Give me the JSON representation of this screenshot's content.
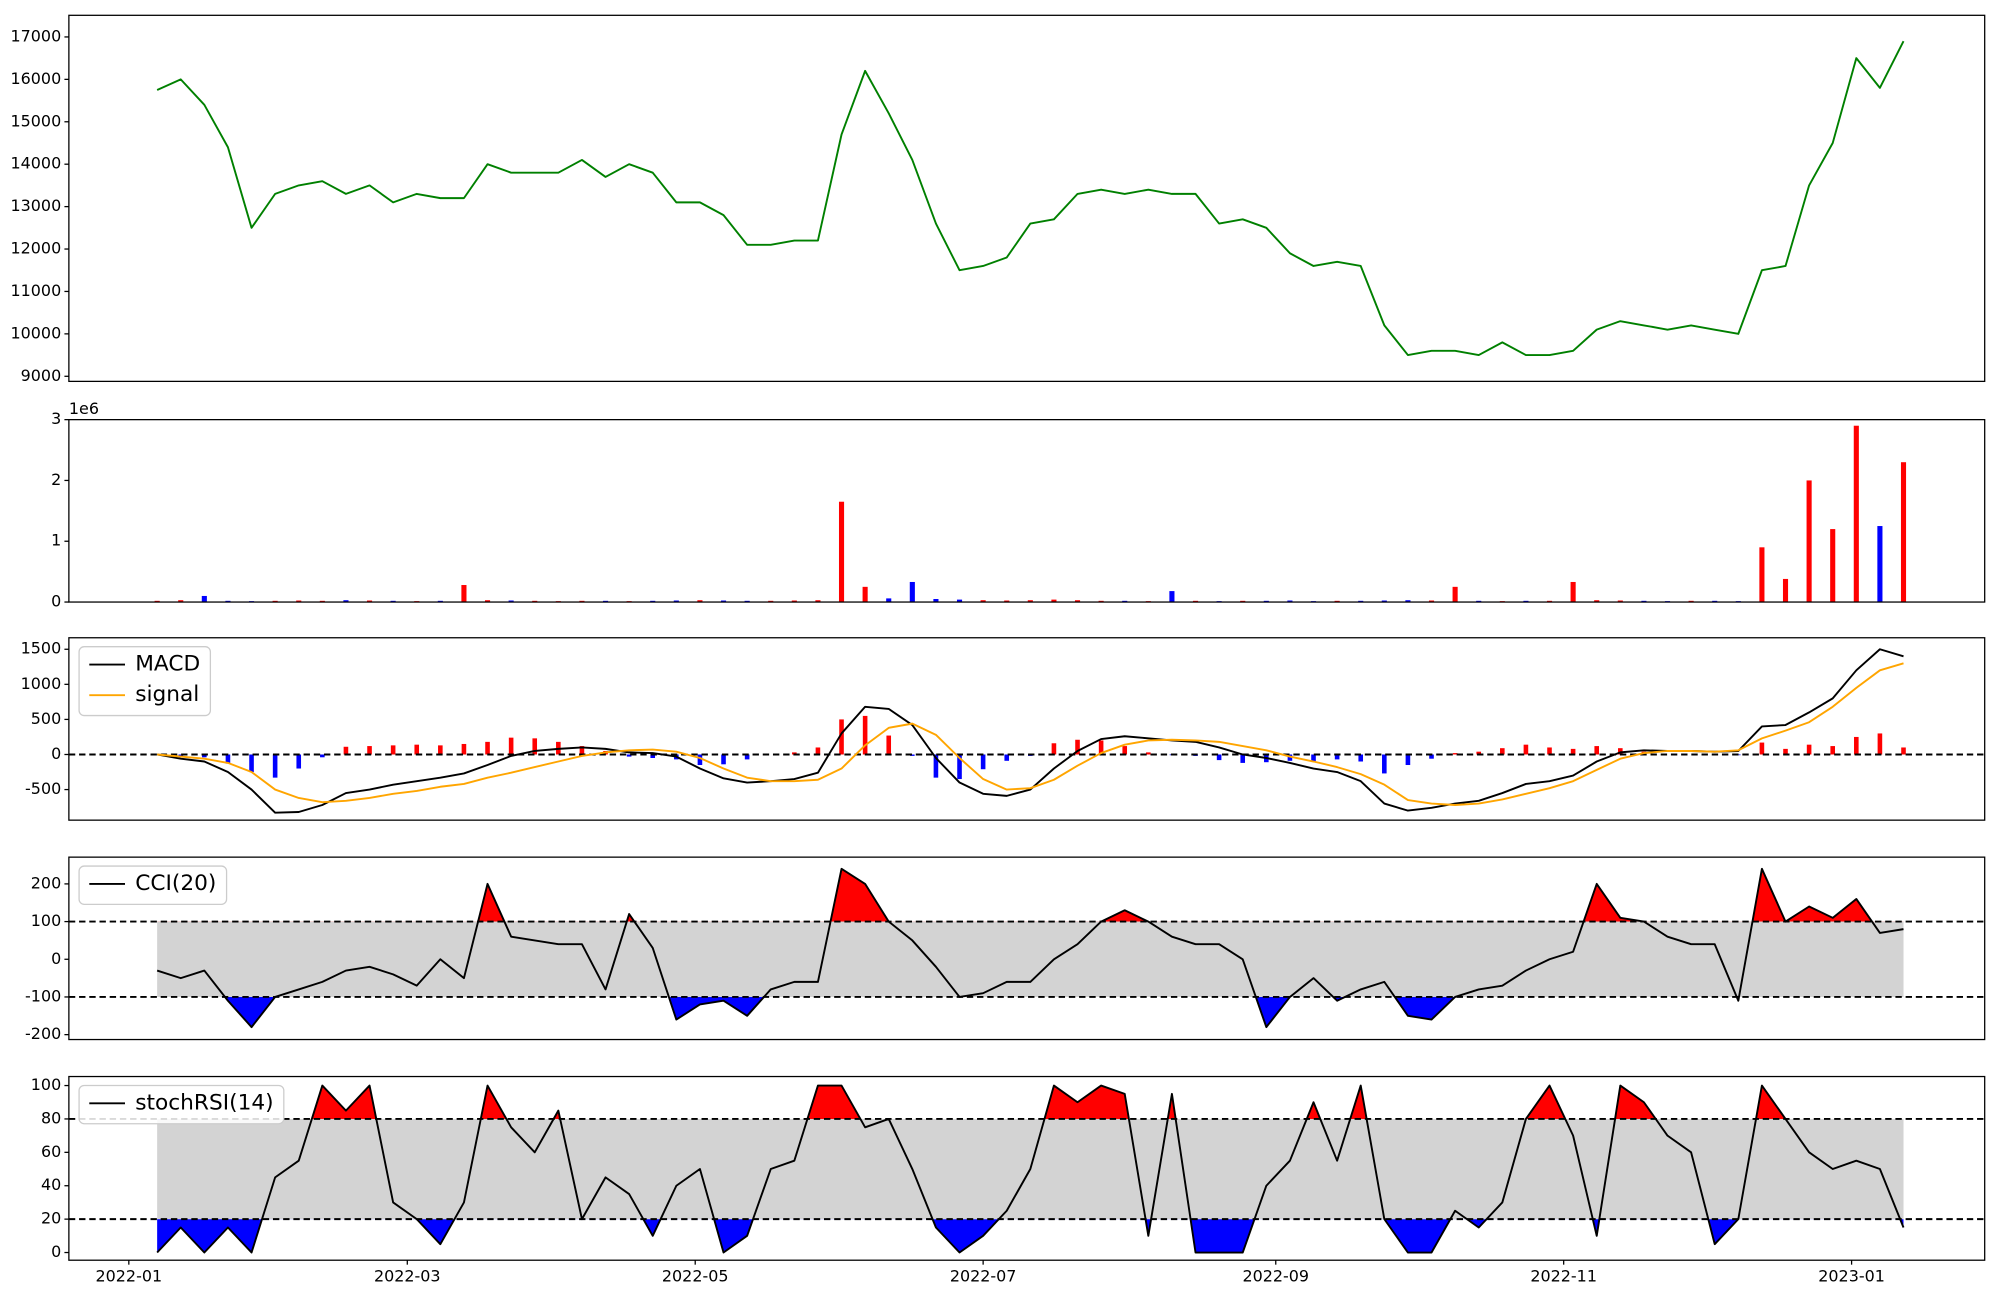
{
  "chart_data": [
    {
      "type": "line",
      "x": [
        6,
        11,
        16,
        21,
        26,
        31,
        36,
        41,
        46,
        51,
        56,
        61,
        66,
        71,
        76,
        81,
        86,
        91,
        96,
        101,
        106,
        111,
        116,
        121,
        126,
        131,
        136,
        141,
        146,
        151,
        156,
        161,
        166,
        171,
        176,
        181,
        186,
        191,
        196,
        201,
        206,
        211,
        216,
        221,
        226,
        231,
        236,
        241,
        246,
        251,
        256,
        261,
        266,
        271,
        276,
        281,
        286,
        291,
        296,
        301,
        306,
        311,
        316,
        321,
        326,
        331,
        336,
        341,
        346,
        351,
        356,
        361,
        366,
        371,
        376
      ],
      "series": [
        {
          "color": "green",
          "values": [
            15750,
            16000,
            15400,
            14400,
            12500,
            13300,
            13500,
            13600,
            13300,
            13500,
            13100,
            13300,
            13200,
            13200,
            14000,
            13800,
            13800,
            13800,
            14100,
            13700,
            14000,
            13800,
            13100,
            13100,
            12800,
            12100,
            12100,
            12200,
            12200,
            14700,
            16200,
            15200,
            14100,
            12600,
            11500,
            11600,
            11800,
            12600,
            12700,
            13300,
            13400,
            13300,
            13400,
            13300,
            13300,
            12600,
            12700,
            12500,
            11900,
            11600,
            11700,
            11600,
            10200,
            9500,
            9600,
            9600,
            9500,
            9800,
            9500,
            9500,
            9600,
            10100,
            10300,
            10200,
            10100,
            10200,
            10100,
            10000,
            11500,
            11600,
            13500,
            14500,
            16500,
            15800,
            16900
          ]
        }
      ],
      "xlim": [
        -12.7,
        393.2
      ],
      "ylim": [
        8880,
        17510
      ],
      "yticks": [
        9000,
        10000,
        11000,
        12000,
        13000,
        14000,
        15000,
        16000,
        17000
      ]
    },
    {
      "type": "bar",
      "x": [
        6,
        11,
        16,
        21,
        26,
        31,
        36,
        41,
        46,
        51,
        56,
        61,
        66,
        71,
        76,
        81,
        86,
        91,
        96,
        101,
        106,
        111,
        116,
        121,
        126,
        131,
        136,
        141,
        146,
        151,
        156,
        161,
        166,
        171,
        176,
        181,
        186,
        191,
        196,
        201,
        206,
        211,
        216,
        221,
        226,
        231,
        236,
        241,
        246,
        251,
        256,
        261,
        266,
        271,
        276,
        281,
        286,
        291,
        296,
        301,
        306,
        311,
        316,
        321,
        326,
        331,
        336,
        341,
        346,
        351,
        356,
        361,
        366,
        371,
        376
      ],
      "values": [
        20000,
        30000,
        100000,
        20000,
        15000,
        20000,
        25000,
        20000,
        30000,
        25000,
        20000,
        15000,
        20000,
        280000,
        30000,
        25000,
        20000,
        15000,
        20000,
        20000,
        15000,
        20000,
        25000,
        30000,
        25000,
        20000,
        20000,
        25000,
        30000,
        1650000,
        250000,
        60000,
        330000,
        50000,
        40000,
        30000,
        25000,
        30000,
        40000,
        30000,
        20000,
        20000,
        15000,
        180000,
        20000,
        15000,
        20000,
        20000,
        25000,
        15000,
        20000,
        20000,
        25000,
        30000,
        25000,
        250000,
        20000,
        15000,
        20000,
        20000,
        330000,
        30000,
        25000,
        20000,
        15000,
        20000,
        20000,
        15000,
        900000,
        380000,
        2000000,
        1200000,
        2900000,
        1250000,
        2300000
      ],
      "up_color": "red",
      "down_color": "blue",
      "xlim": [
        -12.7,
        393.2
      ],
      "ylim": [
        0,
        3000000
      ],
      "yticks": [
        0,
        {
          "value": 1000000,
          "label": "1"
        },
        {
          "value": 2000000,
          "label": "2"
        },
        {
          "value": 3000000,
          "label": "3"
        }
      ],
      "offset_label": "1e6"
    },
    {
      "type": "macd",
      "x": [
        6,
        11,
        16,
        21,
        26,
        31,
        36,
        41,
        46,
        51,
        56,
        61,
        66,
        71,
        76,
        81,
        86,
        91,
        96,
        101,
        106,
        111,
        116,
        121,
        126,
        131,
        136,
        141,
        146,
        151,
        156,
        161,
        166,
        171,
        176,
        181,
        186,
        191,
        196,
        201,
        206,
        211,
        216,
        221,
        226,
        231,
        236,
        241,
        246,
        251,
        256,
        261,
        266,
        271,
        276,
        281,
        286,
        291,
        296,
        301,
        306,
        311,
        316,
        321,
        326,
        331,
        336,
        341,
        346,
        351,
        356,
        361,
        366,
        371,
        376
      ],
      "series": [
        {
          "name": "MACD",
          "color": "black",
          "values": [
            0,
            -60,
            -100,
            -250,
            -500,
            -830,
            -820,
            -720,
            -550,
            -500,
            -430,
            -380,
            -330,
            -270,
            -150,
            -20,
            50,
            80,
            100,
            80,
            30,
            20,
            -30,
            -200,
            -340,
            -400,
            -380,
            -350,
            -260,
            300,
            680,
            650,
            420,
            -50,
            -400,
            -560,
            -590,
            -500,
            -200,
            50,
            220,
            260,
            230,
            200,
            180,
            100,
            0,
            -50,
            -120,
            -200,
            -250,
            -380,
            -700,
            -800,
            -760,
            -700,
            -660,
            -550,
            -420,
            -380,
            -300,
            -100,
            30,
            60,
            50,
            50,
            40,
            50,
            400,
            420,
            600,
            800,
            1200,
            1500,
            1400
          ]
        },
        {
          "name": "signal",
          "color": "orange",
          "values": [
            0,
            -30,
            -60,
            -120,
            -250,
            -500,
            -620,
            -680,
            -660,
            -620,
            -560,
            -520,
            -460,
            -420,
            -330,
            -260,
            -180,
            -100,
            -20,
            30,
            60,
            70,
            40,
            -50,
            -200,
            -330,
            -380,
            -380,
            -360,
            -200,
            130,
            380,
            440,
            280,
            -50,
            -350,
            -500,
            -480,
            -360,
            -160,
            20,
            140,
            200,
            210,
            200,
            180,
            120,
            60,
            -30,
            -100,
            -180,
            -280,
            -430,
            -650,
            -700,
            -720,
            -700,
            -640,
            -560,
            -480,
            -380,
            -220,
            -60,
            20,
            50,
            50,
            40,
            60,
            230,
            340,
            460,
            680,
            950,
            1200,
            1300
          ]
        }
      ],
      "histogram": {
        "values": [
          0,
          -30,
          -40,
          -130,
          -250,
          -330,
          -200,
          -40,
          110,
          120,
          130,
          140,
          130,
          150,
          180,
          240,
          230,
          180,
          120,
          50,
          -30,
          -50,
          -70,
          -150,
          -140,
          -70,
          0,
          30,
          100,
          500,
          550,
          270,
          -20,
          -330,
          -350,
          -210,
          -90,
          -20,
          160,
          210,
          200,
          120,
          30,
          -10,
          -20,
          -80,
          -120,
          -110,
          -90,
          -100,
          -70,
          -100,
          -270,
          -150,
          -60,
          20,
          40,
          90,
          140,
          100,
          80,
          120,
          90,
          40,
          0,
          0,
          0,
          -10,
          170,
          80,
          140,
          120,
          250,
          300,
          100
        ],
        "up_color": "red",
        "down_color": "blue"
      },
      "hline": 0,
      "legend": "upper left",
      "xlim": [
        -12.7,
        393.2
      ],
      "ylim": [
        -936,
        1664
      ],
      "yticks": [
        -500,
        0,
        500,
        1000,
        1500
      ]
    },
    {
      "type": "band_line",
      "x": [
        6,
        11,
        16,
        21,
        26,
        31,
        36,
        41,
        46,
        51,
        56,
        61,
        66,
        71,
        76,
        81,
        86,
        91,
        96,
        101,
        106,
        111,
        116,
        121,
        126,
        131,
        136,
        141,
        146,
        151,
        156,
        161,
        166,
        171,
        176,
        181,
        186,
        191,
        196,
        201,
        206,
        211,
        216,
        221,
        226,
        231,
        236,
        241,
        246,
        251,
        256,
        261,
        266,
        271,
        276,
        281,
        286,
        291,
        296,
        301,
        306,
        311,
        316,
        321,
        326,
        331,
        336,
        341,
        346,
        351,
        356,
        361,
        366,
        371,
        376
      ],
      "series": [
        {
          "name": "CCI(20)",
          "color": "black",
          "values": [
            -30,
            -50,
            -30,
            -110,
            -180,
            -100,
            -80,
            -60,
            -30,
            -20,
            -40,
            -70,
            0,
            -50,
            200,
            60,
            50,
            40,
            40,
            -80,
            120,
            30,
            -160,
            -120,
            -110,
            -150,
            -80,
            -60,
            -60,
            240,
            200,
            100,
            50,
            -20,
            -100,
            -90,
            -60,
            -60,
            0,
            40,
            100,
            130,
            100,
            60,
            40,
            40,
            0,
            -180,
            -100,
            -50,
            -110,
            -80,
            -60,
            -150,
            -160,
            -100,
            -80,
            -70,
            -30,
            0,
            20,
            200,
            110,
            100,
            60,
            40,
            40,
            -110,
            240,
            100,
            140,
            110,
            160,
            70,
            80
          ]
        }
      ],
      "upper": 100,
      "lower": -100,
      "upper_color": "red",
      "lower_color": "blue",
      "band_color": "lightgray",
      "legend": "upper left",
      "xlim": [
        -12.7,
        393.2
      ],
      "ylim": [
        -213,
        271
      ],
      "yticks": [
        -200,
        -100,
        0,
        100,
        200
      ]
    },
    {
      "type": "band_line",
      "x": [
        6,
        11,
        16,
        21,
        26,
        31,
        36,
        41,
        46,
        51,
        56,
        61,
        66,
        71,
        76,
        81,
        86,
        91,
        96,
        101,
        106,
        111,
        116,
        121,
        126,
        131,
        136,
        141,
        146,
        151,
        156,
        161,
        166,
        171,
        176,
        181,
        186,
        191,
        196,
        201,
        206,
        211,
        216,
        221,
        226,
        231,
        236,
        241,
        246,
        251,
        256,
        261,
        266,
        271,
        276,
        281,
        286,
        291,
        296,
        301,
        306,
        311,
        316,
        321,
        326,
        331,
        336,
        341,
        346,
        351,
        356,
        361,
        366,
        371,
        376
      ],
      "series": [
        {
          "name": "stochRSI(14)",
          "color": "black",
          "values": [
            0,
            15,
            0,
            15,
            0,
            45,
            55,
            100,
            85,
            100,
            30,
            20,
            5,
            30,
            100,
            75,
            60,
            85,
            20,
            45,
            35,
            10,
            40,
            50,
            0,
            10,
            50,
            55,
            100,
            100,
            75,
            80,
            50,
            15,
            0,
            10,
            25,
            50,
            100,
            90,
            100,
            95,
            10,
            95,
            0,
            0,
            0,
            40,
            55,
            90,
            55,
            100,
            20,
            0,
            0,
            25,
            15,
            30,
            80,
            100,
            70,
            10,
            100,
            90,
            70,
            60,
            5,
            20,
            100,
            80,
            60,
            50,
            55,
            50,
            15
          ]
        }
      ],
      "upper": 80,
      "lower": 20,
      "upper_color": "red",
      "lower_color": "blue",
      "band_color": "lightgray",
      "legend": "upper left",
      "xlim": [
        -12.7,
        393.2
      ],
      "ylim": [
        -4.6,
        105.4
      ],
      "yticks": [
        0,
        20,
        40,
        60,
        80,
        100
      ],
      "xticks": [
        {
          "value": 0,
          "label": "2022-01"
        },
        {
          "value": 59,
          "label": "2022-03"
        },
        {
          "value": 120,
          "label": "2022-05"
        },
        {
          "value": 181,
          "label": "2022-07"
        },
        {
          "value": 243,
          "label": "2022-09"
        },
        {
          "value": 304,
          "label": "2022-11"
        },
        {
          "value": 365,
          "label": "2023-01"
        }
      ]
    }
  ]
}
